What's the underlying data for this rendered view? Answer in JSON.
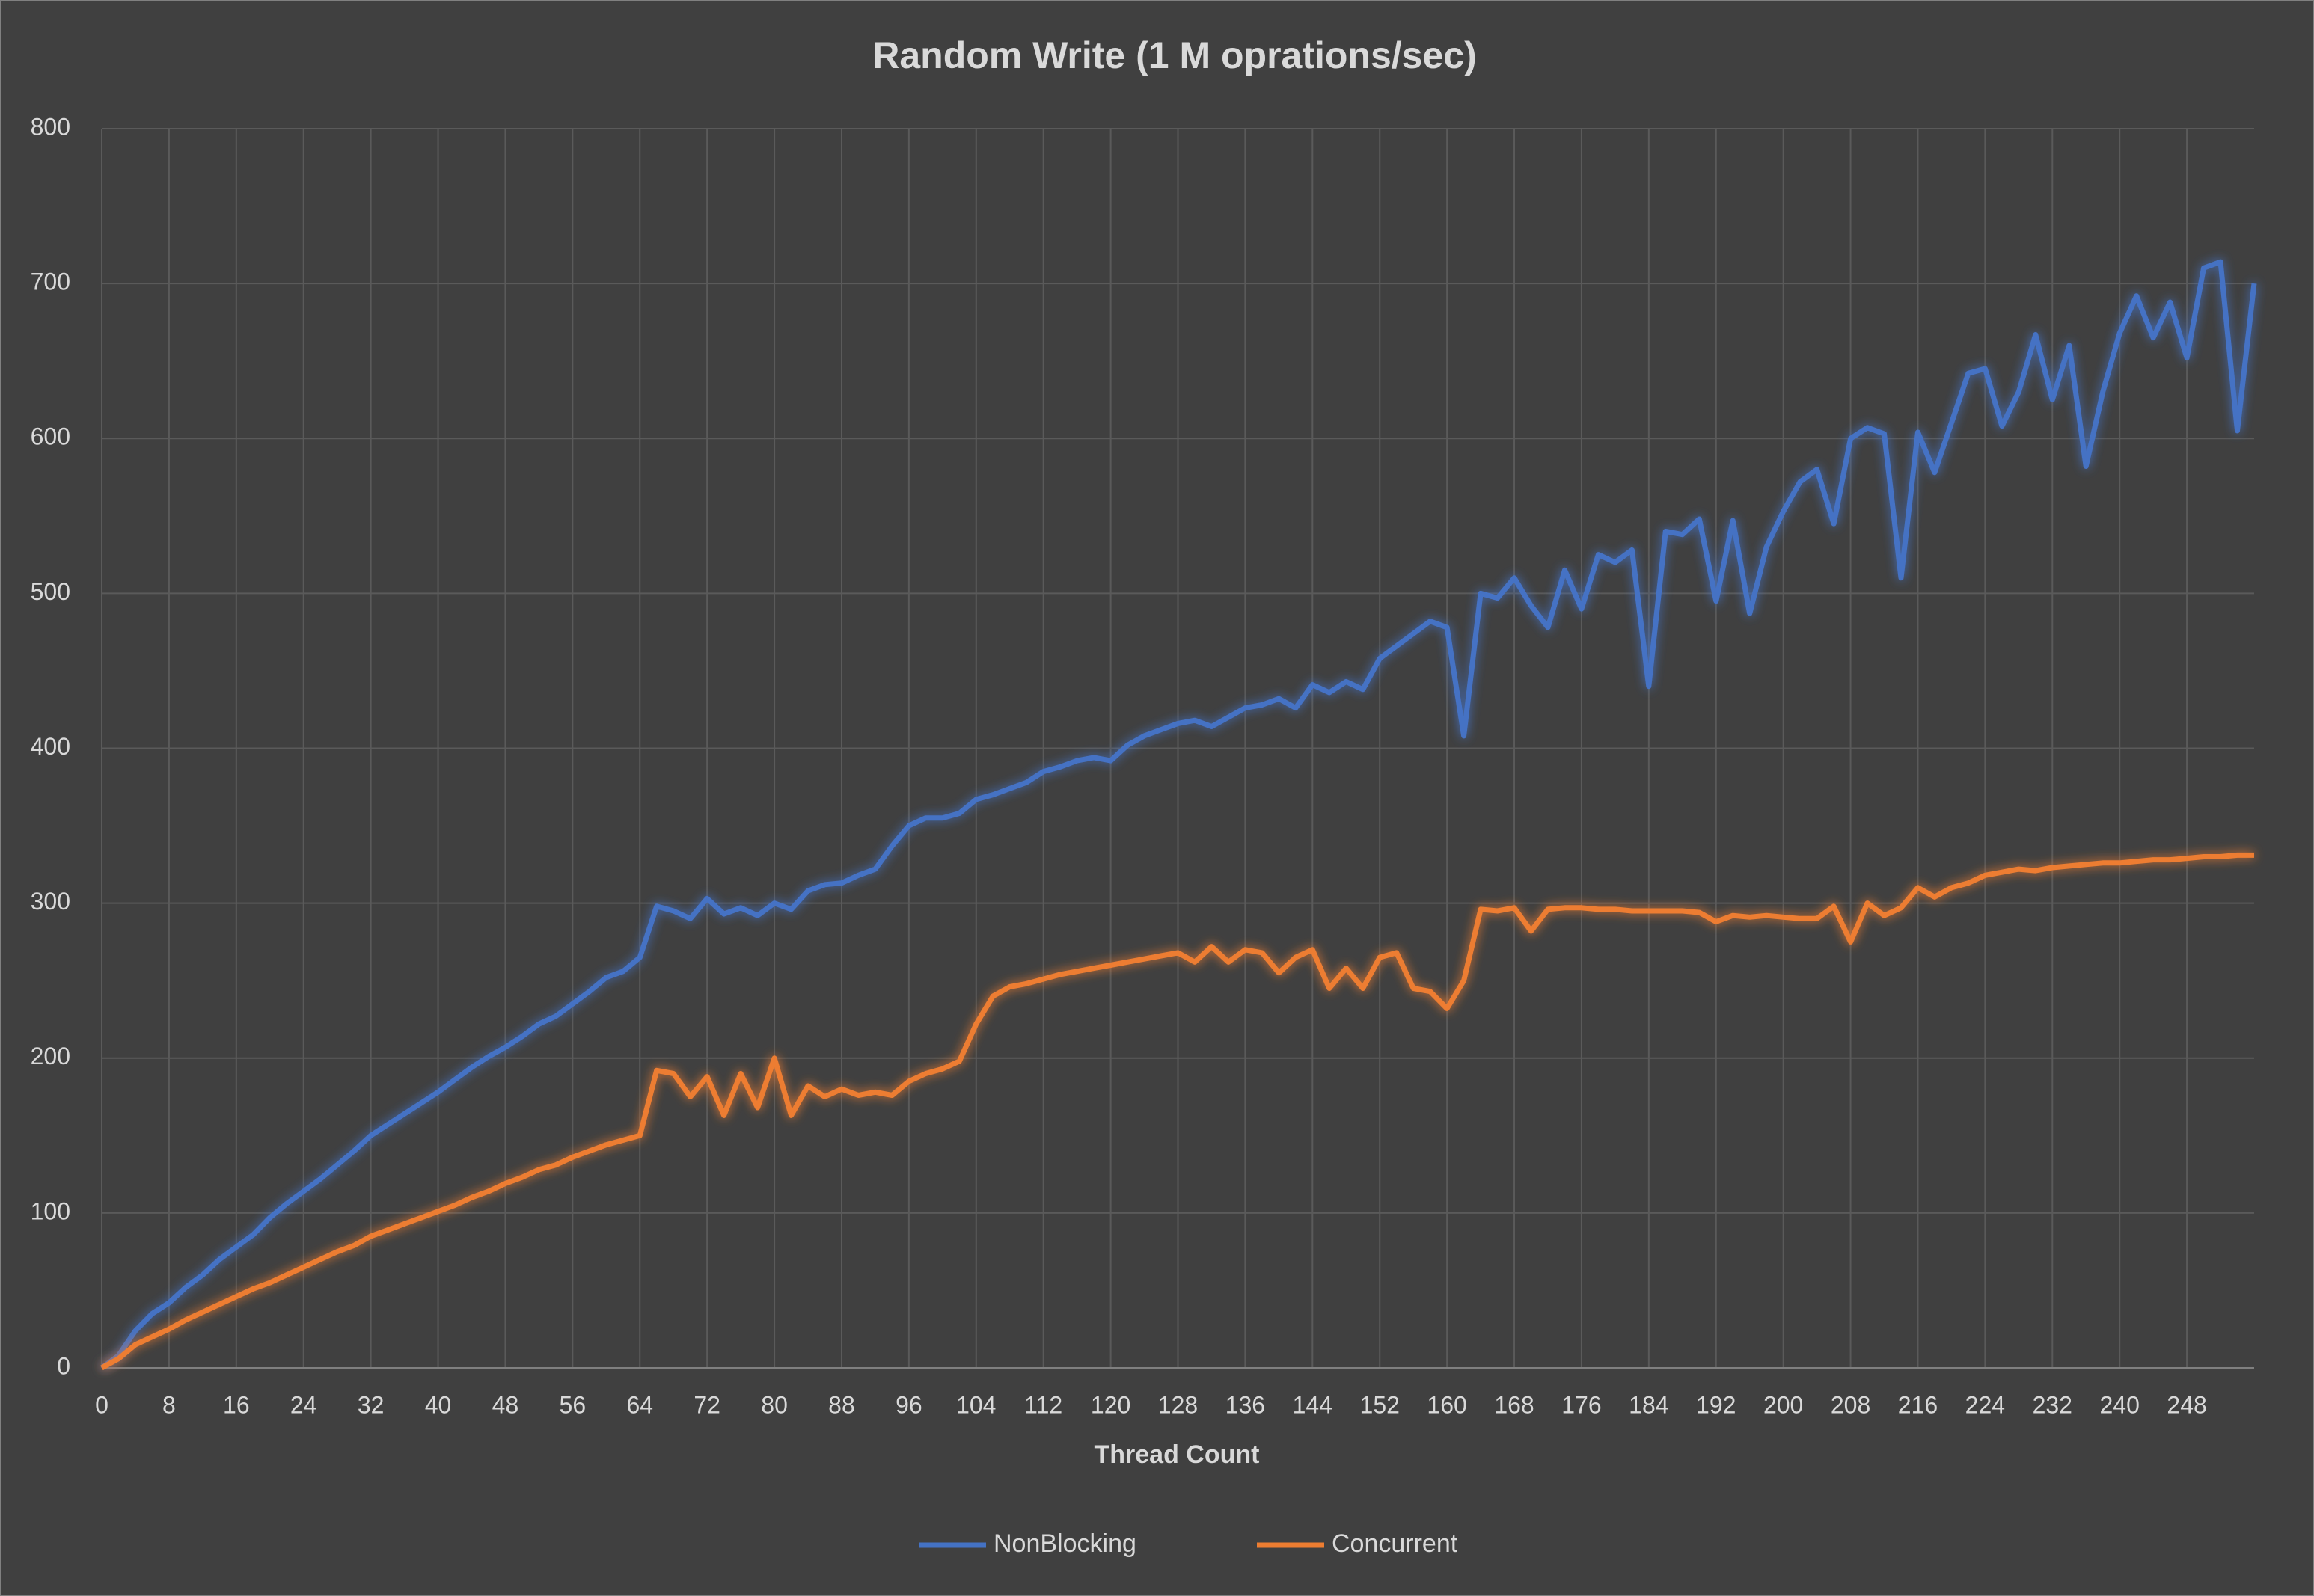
{
  "chart_data": {
    "type": "line",
    "title": "Random Write (1 M oprations/sec)",
    "x_label": "Thread Count",
    "x": [
      0,
      2,
      4,
      6,
      8,
      10,
      12,
      14,
      16,
      18,
      20,
      22,
      24,
      26,
      28,
      30,
      32,
      34,
      36,
      38,
      40,
      42,
      44,
      46,
      48,
      50,
      52,
      54,
      56,
      58,
      60,
      62,
      64,
      66,
      68,
      70,
      72,
      74,
      76,
      78,
      80,
      82,
      84,
      86,
      88,
      90,
      92,
      94,
      96,
      98,
      100,
      102,
      104,
      106,
      108,
      110,
      112,
      114,
      116,
      118,
      120,
      122,
      124,
      126,
      128,
      130,
      132,
      134,
      136,
      138,
      140,
      142,
      144,
      146,
      148,
      150,
      152,
      154,
      156,
      158,
      160,
      162,
      164,
      166,
      168,
      170,
      172,
      174,
      176,
      178,
      180,
      182,
      184,
      186,
      188,
      190,
      192,
      194,
      196,
      198,
      200,
      202,
      204,
      206,
      208,
      210,
      212,
      214,
      216,
      218,
      220,
      222,
      224,
      226,
      228,
      230,
      232,
      234,
      236,
      238,
      240,
      242,
      244,
      246,
      248,
      250,
      252,
      254,
      256
    ],
    "series": [
      {
        "name": "NonBlocking",
        "color": "#4472c4",
        "values": [
          0,
          8,
          24,
          35,
          42,
          52,
          60,
          70,
          78,
          86,
          97,
          106,
          114,
          122,
          131,
          140,
          150,
          157,
          164,
          171,
          178,
          186,
          194,
          201,
          207,
          214,
          222,
          227,
          235,
          243,
          252,
          256,
          265,
          298,
          295,
          290,
          303,
          293,
          297,
          292,
          300,
          296,
          308,
          312,
          313,
          318,
          322,
          337,
          350,
          355,
          355,
          358,
          367,
          370,
          374,
          378,
          385,
          388,
          392,
          394,
          392,
          402,
          408,
          412,
          416,
          418,
          414,
          420,
          426,
          428,
          432,
          426,
          441,
          436,
          443,
          438,
          458,
          466,
          474,
          482,
          478,
          408,
          500,
          497,
          510,
          492,
          478,
          515,
          490,
          525,
          520,
          528,
          440,
          540,
          538,
          548,
          495,
          547,
          487,
          530,
          553,
          572,
          580,
          545,
          600,
          607,
          603,
          510,
          604,
          578,
          610,
          642,
          645,
          608,
          630,
          667,
          625,
          660,
          582,
          630,
          668,
          692,
          665,
          688,
          652,
          710,
          714,
          605,
          700
        ]
      },
      {
        "name": "Concurrent",
        "color": "#ed7d31",
        "values": [
          0,
          6,
          15,
          20,
          25,
          31,
          36,
          41,
          46,
          51,
          55,
          60,
          65,
          70,
          75,
          79,
          85,
          89,
          93,
          97,
          101,
          105,
          110,
          114,
          119,
          123,
          128,
          131,
          136,
          140,
          144,
          147,
          150,
          192,
          190,
          175,
          188,
          163,
          190,
          168,
          200,
          163,
          182,
          175,
          180,
          176,
          178,
          176,
          185,
          190,
          193,
          198,
          222,
          240,
          246,
          248,
          251,
          254,
          256,
          258,
          260,
          262,
          264,
          266,
          268,
          262,
          272,
          262,
          270,
          268,
          255,
          265,
          270,
          245,
          258,
          245,
          265,
          268,
          245,
          243,
          232,
          250,
          296,
          295,
          297,
          282,
          296,
          297,
          297,
          296,
          296,
          295,
          295,
          295,
          295,
          294,
          288,
          292,
          291,
          292,
          291,
          290,
          290,
          298,
          275,
          300,
          292,
          297,
          310,
          304,
          310,
          313,
          318,
          320,
          322,
          321,
          323,
          324,
          325,
          326,
          326,
          327,
          328,
          328,
          329,
          330,
          330,
          331,
          331
        ]
      }
    ],
    "xlim": [
      0,
      256
    ],
    "xticks": [
      0,
      8,
      16,
      24,
      32,
      40,
      48,
      56,
      64,
      72,
      80,
      88,
      96,
      104,
      112,
      120,
      128,
      136,
      144,
      152,
      160,
      168,
      176,
      184,
      192,
      200,
      208,
      216,
      224,
      232,
      240,
      248
    ],
    "ylim": [
      0,
      800
    ],
    "yticks": [
      0,
      100,
      200,
      300,
      400,
      500,
      600,
      700,
      800
    ],
    "grid": true,
    "legend": "bottom"
  }
}
